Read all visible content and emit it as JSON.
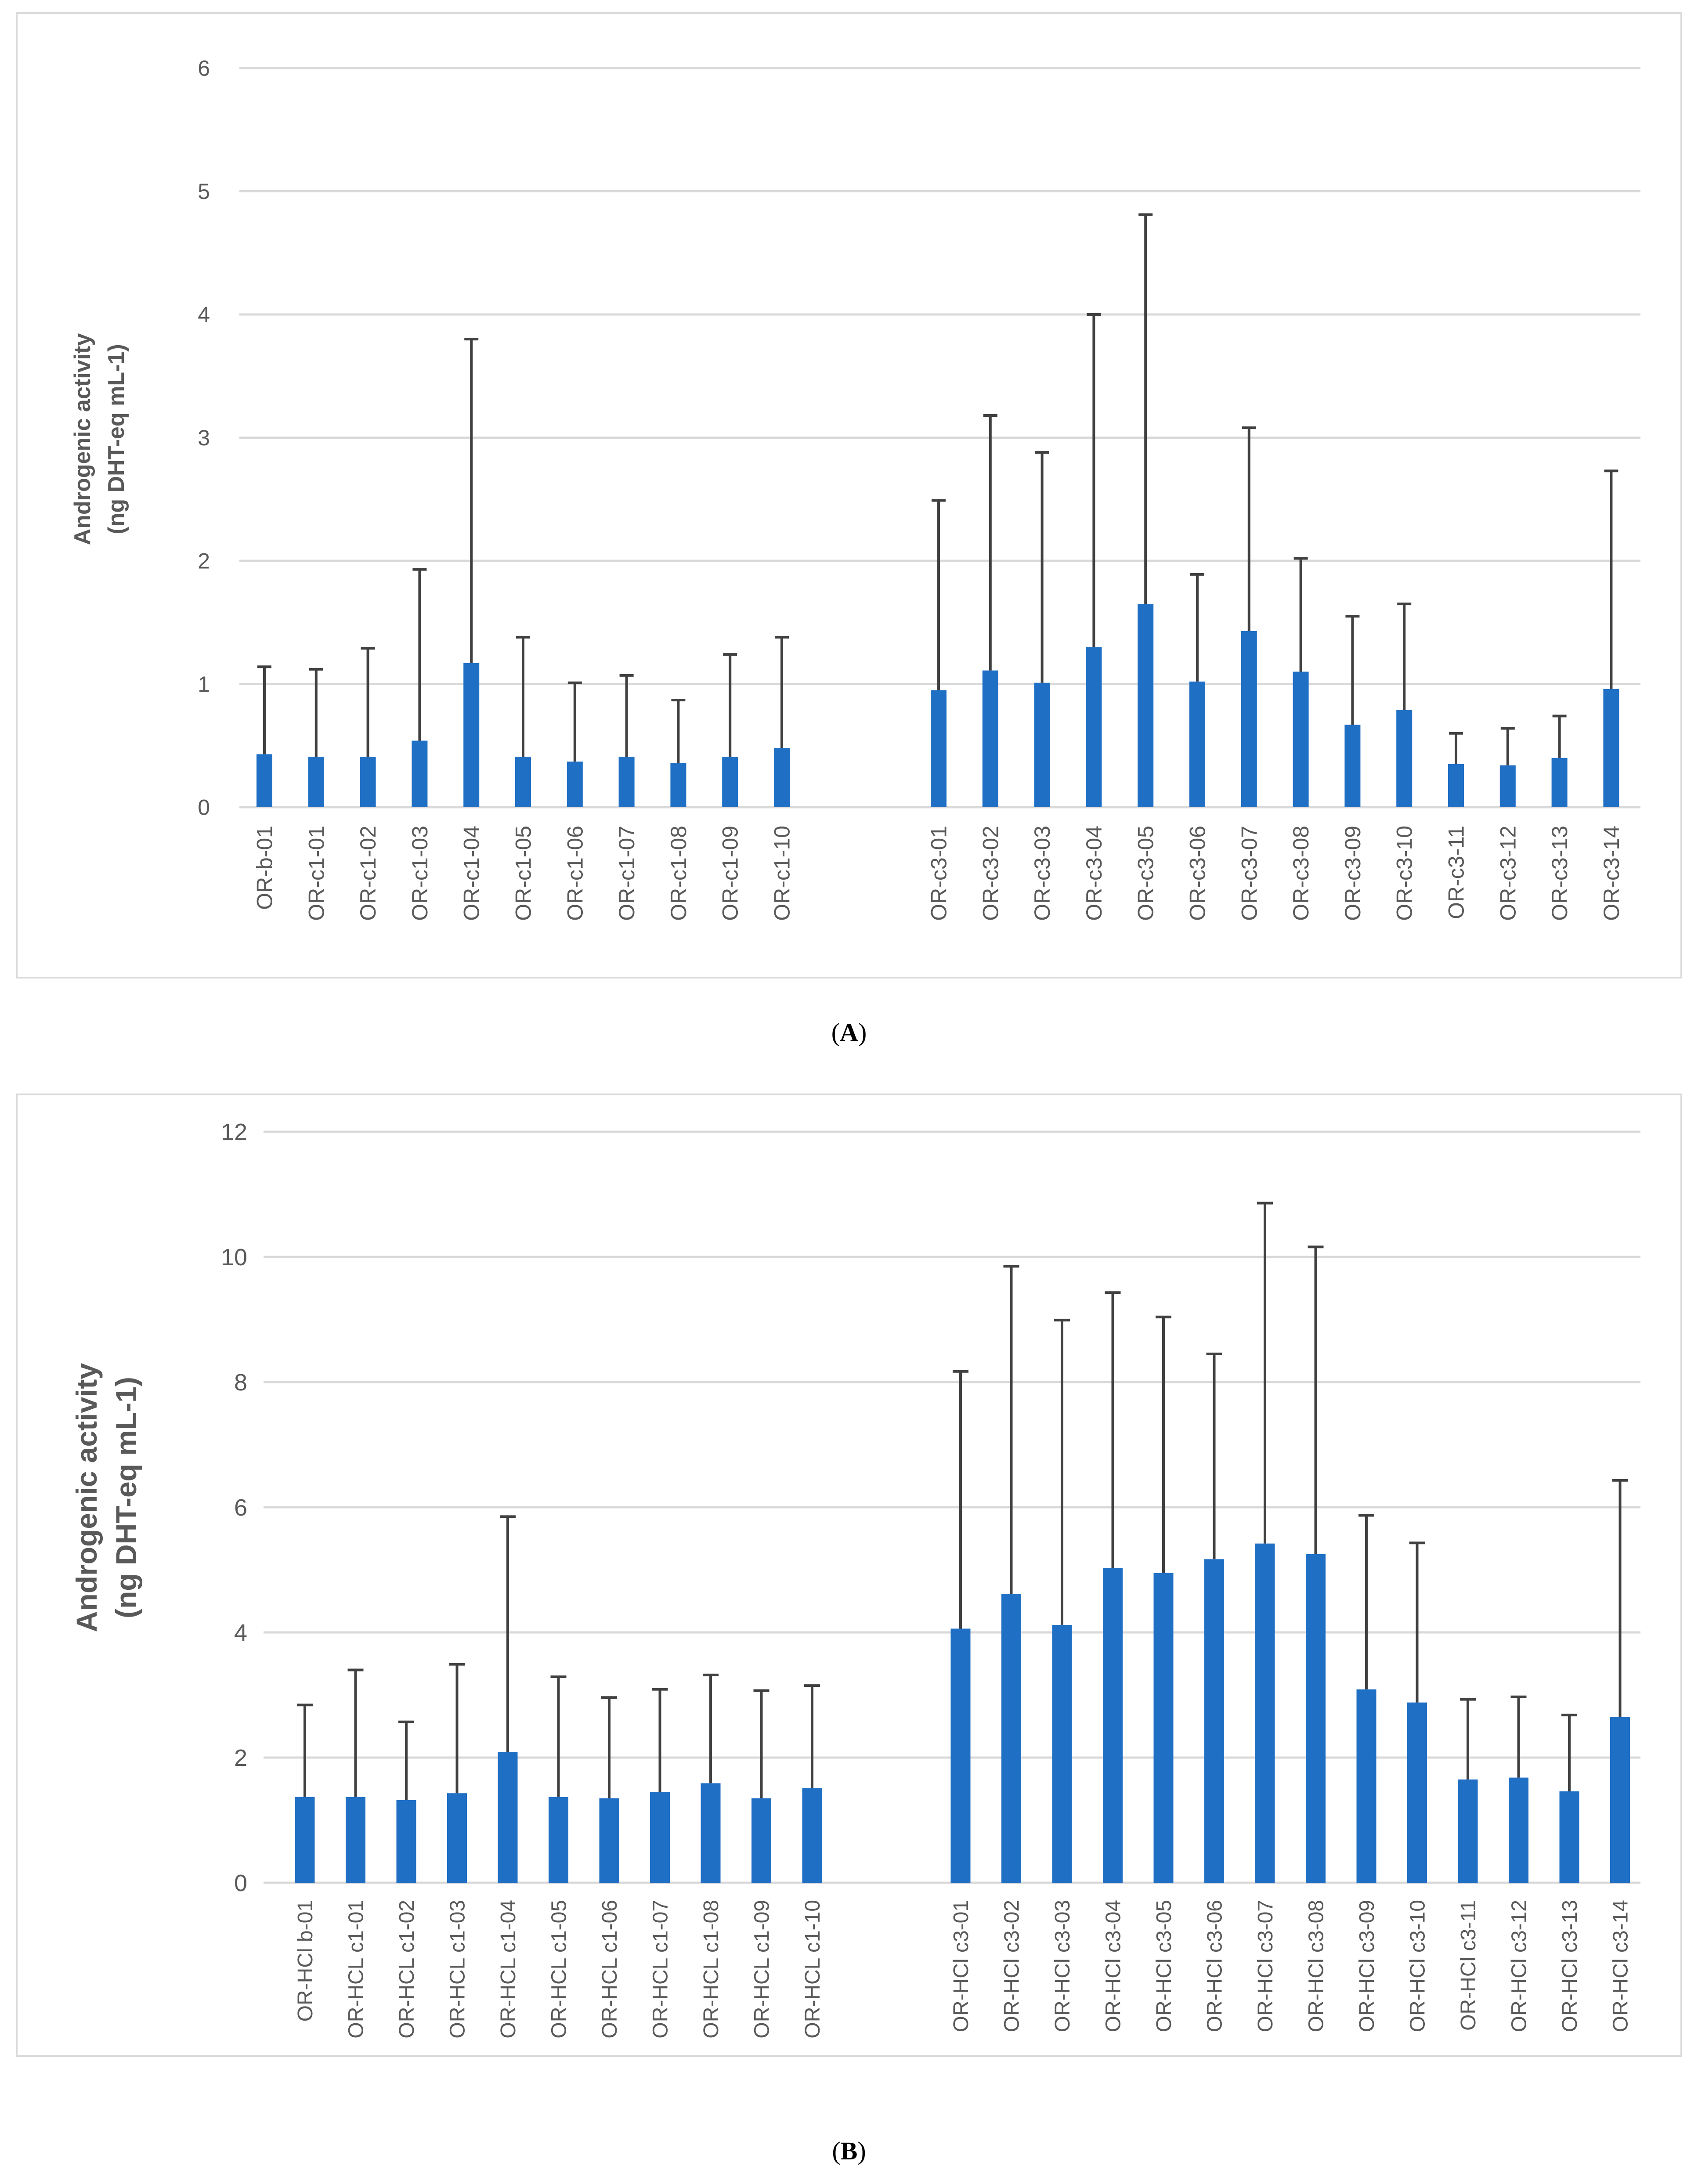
{
  "chart_data": [
    {
      "type": "bar",
      "panel_label": "A",
      "caption": "(A)",
      "title": "",
      "xlabel": "",
      "ylabel": [
        "Androgenic activity",
        "(ng DHT-eq mL-1)"
      ],
      "ylim": [
        0,
        6
      ],
      "yticks": [
        0,
        1,
        2,
        3,
        4,
        5,
        6
      ],
      "grid": true,
      "groups": [
        {
          "categories": [
            "OR-b-01",
            "OR-c1-01",
            "OR-c1-02",
            "OR-c1-03",
            "OR-c1-04",
            "OR-c1-05",
            "OR-c1-06",
            "OR-c1-07",
            "OR-c1-08",
            "OR-c1-09",
            "OR-c1-10"
          ],
          "values": [
            0.43,
            0.41,
            0.41,
            0.54,
            1.17,
            0.41,
            0.37,
            0.41,
            0.36,
            0.41,
            0.48
          ],
          "errors": [
            0.71,
            0.71,
            0.88,
            1.39,
            2.63,
            0.97,
            0.64,
            0.66,
            0.51,
            0.83,
            0.9
          ]
        },
        {
          "categories": [
            "OR-c3-01",
            "OR-c3-02",
            "OR-c3-03",
            "OR-c3-04",
            "OR-c3-05",
            "OR-c3-06",
            "OR-c3-07",
            "OR-c3-08",
            "OR-c3-09",
            "OR-c3-10",
            "OR-c3-11",
            "OR-c3-12",
            "OR-c3-13",
            "OR-c3-14"
          ],
          "values": [
            0.95,
            1.11,
            1.01,
            1.3,
            1.65,
            1.02,
            1.43,
            1.1,
            0.67,
            0.79,
            0.35,
            0.34,
            0.4,
            0.96
          ],
          "errors": [
            1.54,
            2.07,
            1.87,
            2.7,
            3.16,
            0.87,
            1.65,
            0.92,
            0.88,
            0.86,
            0.25,
            0.3,
            0.34,
            1.77
          ]
        }
      ]
    },
    {
      "type": "bar",
      "panel_label": "B",
      "caption": "(B)",
      "title": "",
      "xlabel": "",
      "ylabel": [
        "Androgenic activity",
        "(ng DHT-eq mL-1)"
      ],
      "ylim": [
        0,
        12
      ],
      "yticks": [
        0,
        2,
        4,
        6,
        8,
        10,
        12
      ],
      "grid": true,
      "groups": [
        {
          "categories": [
            "OR-HCl b-01",
            "OR-HCL c1-01",
            "OR-HCL c1-02",
            "OR-HCL c1-03",
            "OR-HCL c1-04",
            "OR-HCL c1-05",
            "OR-HCL c1-06",
            "OR-HCL c1-07",
            "OR-HCL c1-08",
            "OR-HCL c1-09",
            "OR-HCL c1-10"
          ],
          "values": [
            1.37,
            1.37,
            1.32,
            1.43,
            2.09,
            1.37,
            1.35,
            1.45,
            1.59,
            1.35,
            1.51
          ],
          "errors": [
            1.47,
            2.03,
            1.25,
            2.06,
            3.76,
            1.92,
            1.61,
            1.64,
            1.73,
            1.72,
            1.64
          ]
        },
        {
          "categories": [
            "OR-HCl c3-01",
            "OR-HCl c3-02",
            "OR-HCl c3-03",
            "OR-HCl c3-04",
            "OR-HCl c3-05",
            "OR-HCl c3-06",
            "OR-HCl c3-07",
            "OR-HCl c3-08",
            "OR-HCl c3-09",
            "OR-HCl c3-10",
            "OR-HCl c3-11",
            "OR-HCl c3-12",
            "OR-HCl c3-13",
            "OR-HCl c3-14"
          ],
          "values": [
            4.06,
            4.61,
            4.12,
            5.03,
            4.95,
            5.17,
            5.42,
            5.25,
            3.09,
            2.88,
            1.65,
            1.68,
            1.46,
            2.65
          ],
          "errors": [
            4.11,
            5.24,
            4.87,
            4.4,
            4.09,
            3.28,
            5.44,
            4.91,
            2.78,
            2.55,
            1.28,
            1.29,
            1.22,
            3.78
          ]
        }
      ]
    }
  ]
}
